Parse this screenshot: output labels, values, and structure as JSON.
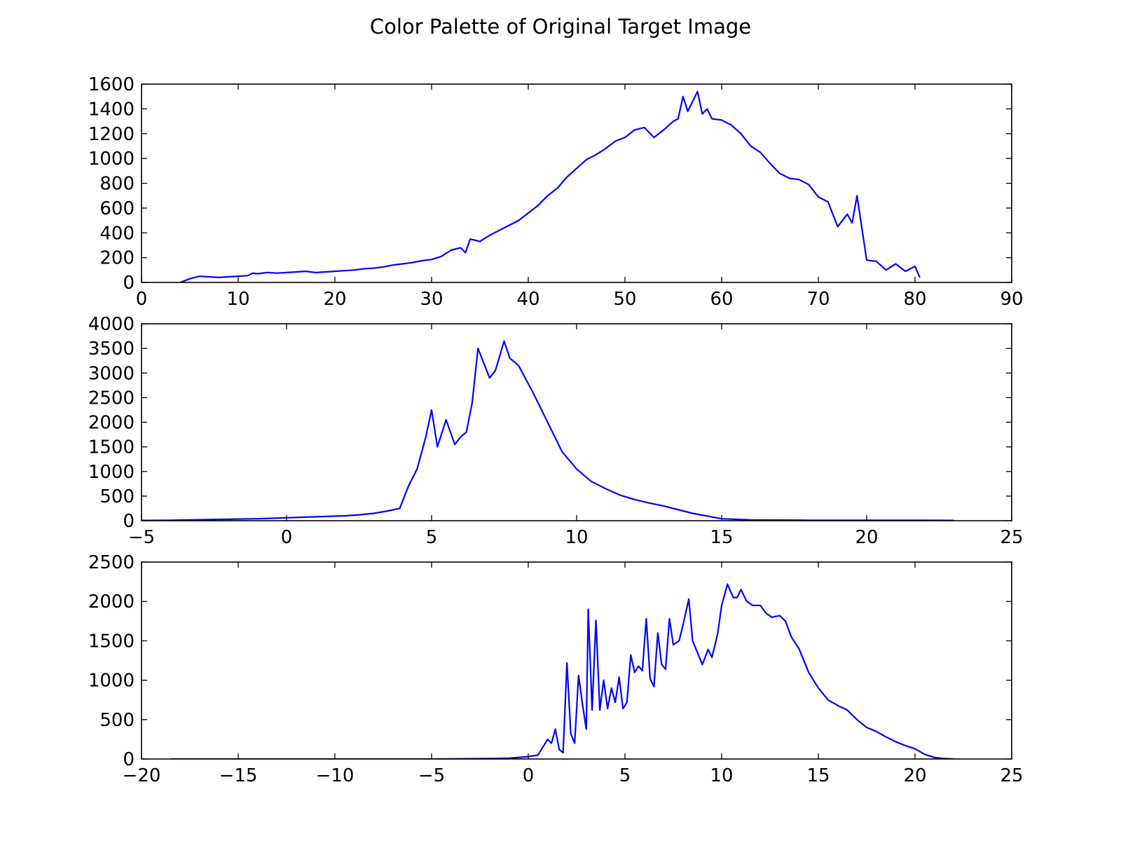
{
  "figure": {
    "title": "Color Palette of Original Target Image"
  },
  "chart_data": [
    {
      "type": "line",
      "xlim": [
        0,
        90
      ],
      "ylim": [
        0,
        1600
      ],
      "xticks": [
        0,
        10,
        20,
        30,
        40,
        50,
        60,
        70,
        80,
        90
      ],
      "xtick_labels": [
        "0",
        "10",
        "20",
        "30",
        "40",
        "50",
        "60",
        "70",
        "80",
        "90"
      ],
      "yticks": [
        0,
        200,
        400,
        600,
        800,
        1000,
        1200,
        1400,
        1600
      ],
      "ytick_labels": [
        "0",
        "200",
        "400",
        "600",
        "800",
        "1000",
        "1200",
        "1400",
        "1600"
      ],
      "grid": false,
      "color": "#0000ff",
      "x": [
        4,
        5,
        6,
        7,
        8,
        9,
        10,
        11,
        11.5,
        12,
        13,
        14,
        15,
        16,
        17,
        18,
        19,
        20,
        21,
        22,
        23,
        24,
        25,
        26,
        27,
        28,
        29,
        30,
        31,
        32,
        33,
        33.5,
        34,
        35,
        36,
        37,
        38,
        39,
        40,
        41,
        42,
        43,
        44,
        45,
        46,
        47,
        48,
        49,
        50,
        51,
        52,
        53,
        54,
        55,
        55.5,
        56,
        56.5,
        57,
        57.5,
        58,
        58.5,
        59,
        60,
        61,
        62,
        63,
        64,
        65,
        66,
        67,
        68,
        69,
        70,
        71,
        72,
        73,
        73.5,
        74,
        75,
        76,
        77,
        78,
        79,
        80,
        80.5
      ],
      "y": [
        0,
        30,
        50,
        45,
        40,
        45,
        50,
        55,
        75,
        70,
        80,
        75,
        80,
        85,
        90,
        80,
        85,
        90,
        95,
        100,
        110,
        115,
        125,
        140,
        150,
        160,
        175,
        185,
        210,
        260,
        280,
        240,
        350,
        330,
        380,
        420,
        460,
        500,
        560,
        620,
        700,
        760,
        850,
        920,
        990,
        1030,
        1080,
        1140,
        1170,
        1230,
        1250,
        1170,
        1230,
        1300,
        1320,
        1500,
        1380,
        1460,
        1540,
        1360,
        1400,
        1320,
        1310,
        1270,
        1200,
        1100,
        1050,
        960,
        880,
        840,
        830,
        790,
        690,
        650,
        450,
        550,
        480,
        700,
        180,
        170,
        100,
        150,
        90,
        130,
        40
      ]
    },
    {
      "type": "line",
      "xlim": [
        -5,
        25
      ],
      "ylim": [
        0,
        4000
      ],
      "xticks": [
        -5,
        0,
        5,
        10,
        15,
        20,
        25
      ],
      "xtick_labels": [
        "−5",
        "0",
        "5",
        "10",
        "15",
        "20",
        "25"
      ],
      "yticks": [
        0,
        500,
        1000,
        1500,
        2000,
        2500,
        3000,
        3500,
        4000
      ],
      "ytick_labels": [
        "0",
        "500",
        "1000",
        "1500",
        "2000",
        "2500",
        "3000",
        "3500",
        "4000"
      ],
      "grid": false,
      "color": "#0000ff",
      "x": [
        -5,
        -4,
        -3,
        -2,
        -1,
        0,
        1,
        2,
        2.5,
        3,
        3.5,
        3.9,
        4.2,
        4.5,
        4.8,
        5,
        5.2,
        5.5,
        5.8,
        6,
        6.2,
        6.4,
        6.6,
        6.8,
        7,
        7.2,
        7.5,
        7.7,
        8,
        8.5,
        9,
        9.5,
        10,
        10.5,
        11,
        11.5,
        12,
        12.5,
        13,
        14,
        15,
        16,
        18,
        20,
        22,
        23
      ],
      "y": [
        5,
        10,
        20,
        30,
        40,
        60,
        80,
        100,
        120,
        150,
        200,
        250,
        700,
        1050,
        1700,
        2250,
        1500,
        2050,
        1550,
        1700,
        1800,
        2400,
        3500,
        3200,
        2900,
        3050,
        3650,
        3300,
        3150,
        2600,
        2000,
        1400,
        1050,
        800,
        650,
        520,
        430,
        360,
        300,
        150,
        40,
        15,
        10,
        10,
        10,
        5
      ]
    },
    {
      "type": "line",
      "xlim": [
        -20,
        25
      ],
      "ylim": [
        0,
        2500
      ],
      "xticks": [
        -20,
        -15,
        -10,
        -5,
        0,
        5,
        10,
        15,
        20,
        25
      ],
      "xtick_labels": [
        "−20",
        "−15",
        "−10",
        "−5",
        "0",
        "5",
        "10",
        "15",
        "20",
        "25"
      ],
      "yticks": [
        0,
        500,
        1000,
        1500,
        2000,
        2500
      ],
      "ytick_labels": [
        "0",
        "500",
        "1000",
        "1500",
        "2000",
        "2500"
      ],
      "grid": false,
      "color": "#0000ff",
      "x": [
        -18.5,
        -15,
        -10,
        -5,
        -2,
        -1,
        0,
        0.5,
        1,
        1.2,
        1.4,
        1.6,
        1.8,
        2,
        2.2,
        2.4,
        2.6,
        2.8,
        3,
        3.1,
        3.3,
        3.5,
        3.7,
        3.9,
        4.1,
        4.3,
        4.5,
        4.7,
        4.9,
        5.1,
        5.3,
        5.5,
        5.7,
        5.9,
        6.1,
        6.3,
        6.5,
        6.7,
        6.9,
        7.1,
        7.3,
        7.5,
        7.8,
        8,
        8.3,
        8.5,
        8.7,
        9,
        9.3,
        9.5,
        9.8,
        10,
        10.3,
        10.6,
        10.8,
        11,
        11.3,
        11.6,
        12,
        12.3,
        12.6,
        13,
        13.3,
        13.6,
        14,
        14.5,
        15,
        15.5,
        16,
        16.5,
        17,
        17.5,
        18,
        18.5,
        19,
        19.5,
        20,
        20.5,
        21,
        21.5,
        22
      ],
      "y": [
        0,
        0,
        0,
        0,
        5,
        10,
        30,
        50,
        250,
        200,
        380,
        120,
        80,
        1220,
        320,
        200,
        1060,
        700,
        380,
        1900,
        620,
        1760,
        620,
        1000,
        640,
        900,
        720,
        1040,
        640,
        720,
        1320,
        1100,
        1180,
        1120,
        1780,
        1020,
        920,
        1600,
        1200,
        1140,
        1780,
        1450,
        1500,
        1700,
        2030,
        1500,
        1380,
        1200,
        1390,
        1290,
        1600,
        1950,
        2220,
        2050,
        2050,
        2150,
        2000,
        1950,
        1950,
        1850,
        1800,
        1820,
        1750,
        1550,
        1400,
        1100,
        900,
        750,
        680,
        620,
        500,
        400,
        350,
        280,
        220,
        170,
        130,
        60,
        20,
        5,
        0
      ]
    }
  ]
}
